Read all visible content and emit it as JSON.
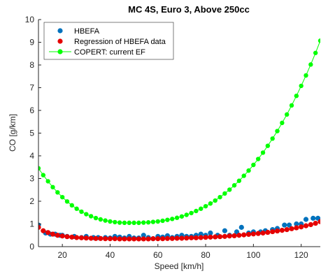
{
  "chart_data": {
    "type": "scatter",
    "title": "MC 4S, Euro 3, Above 250cc",
    "xlabel": "Speed [km/h]",
    "ylabel": "CO [g/km]",
    "xlim": [
      10,
      128
    ],
    "ylim": [
      0,
      10
    ],
    "xticks": [
      20,
      40,
      60,
      80,
      100,
      120
    ],
    "yticks": [
      0,
      1,
      2,
      3,
      4,
      5,
      6,
      7,
      8,
      9,
      10
    ],
    "grid": false,
    "legend_position": "top-left",
    "series": [
      {
        "name": "HBEFA",
        "type": "scatter",
        "color": "#0072BD",
        "x": [
          10,
          13,
          15,
          17,
          19,
          20,
          22,
          25,
          28,
          30,
          33,
          35,
          38,
          40,
          42,
          44,
          46,
          48,
          50,
          52,
          54,
          56,
          58,
          60,
          62,
          64,
          66,
          68,
          70,
          72,
          74,
          76,
          78,
          80,
          82,
          85,
          88,
          90,
          93,
          95,
          98,
          100,
          103,
          105,
          108,
          110,
          113,
          115,
          118,
          120,
          122,
          125,
          127
        ],
        "y": [
          0.95,
          0.6,
          0.55,
          0.55,
          0.5,
          0.5,
          0.45,
          0.45,
          0.4,
          0.45,
          0.4,
          0.4,
          0.4,
          0.38,
          0.45,
          0.42,
          0.38,
          0.45,
          0.38,
          0.38,
          0.5,
          0.4,
          0.35,
          0.45,
          0.42,
          0.48,
          0.4,
          0.45,
          0.5,
          0.45,
          0.45,
          0.5,
          0.55,
          0.5,
          0.6,
          0.5,
          0.7,
          0.5,
          0.65,
          0.85,
          0.6,
          0.65,
          0.65,
          0.7,
          0.75,
          0.8,
          0.95,
          0.95,
          1.0,
          1.0,
          1.2,
          1.25,
          1.25
        ]
      },
      {
        "name": "Regression of HBEFA data",
        "type": "scatter",
        "color": "#E50000",
        "x": [
          10,
          12,
          14,
          16,
          18,
          20,
          22,
          24,
          26,
          28,
          30,
          32,
          34,
          36,
          38,
          40,
          42,
          44,
          46,
          48,
          50,
          52,
          54,
          56,
          58,
          60,
          62,
          64,
          66,
          68,
          70,
          72,
          74,
          76,
          78,
          80,
          82,
          84,
          86,
          88,
          90,
          92,
          94,
          96,
          98,
          100,
          102,
          104,
          106,
          108,
          110,
          112,
          114,
          116,
          118,
          120,
          122,
          124,
          126,
          128
        ],
        "y": [
          0.85,
          0.7,
          0.62,
          0.55,
          0.5,
          0.47,
          0.44,
          0.42,
          0.4,
          0.39,
          0.38,
          0.37,
          0.36,
          0.36,
          0.35,
          0.35,
          0.35,
          0.34,
          0.34,
          0.34,
          0.34,
          0.34,
          0.34,
          0.34,
          0.35,
          0.35,
          0.35,
          0.36,
          0.36,
          0.37,
          0.37,
          0.38,
          0.39,
          0.39,
          0.4,
          0.41,
          0.42,
          0.43,
          0.44,
          0.45,
          0.47,
          0.48,
          0.5,
          0.52,
          0.54,
          0.56,
          0.58,
          0.6,
          0.63,
          0.66,
          0.69,
          0.72,
          0.75,
          0.79,
          0.83,
          0.87,
          0.92,
          0.97,
          1.03,
          1.1
        ]
      },
      {
        "name": "COPERT: current EF",
        "type": "line-marker",
        "color": "#00FF00",
        "x": [
          10,
          12,
          14,
          16,
          18,
          20,
          22,
          24,
          26,
          28,
          30,
          32,
          34,
          36,
          38,
          40,
          42,
          44,
          46,
          48,
          50,
          52,
          54,
          56,
          58,
          60,
          62,
          64,
          66,
          68,
          70,
          72,
          74,
          76,
          78,
          80,
          82,
          84,
          86,
          88,
          90,
          92,
          94,
          96,
          98,
          100,
          102,
          104,
          106,
          108,
          110,
          112,
          114,
          116,
          118,
          120,
          122,
          124,
          126,
          128
        ],
        "y": [
          3.45,
          3.15,
          2.88,
          2.62,
          2.39,
          2.18,
          1.99,
          1.82,
          1.67,
          1.54,
          1.43,
          1.34,
          1.26,
          1.2,
          1.15,
          1.11,
          1.08,
          1.06,
          1.05,
          1.05,
          1.05,
          1.05,
          1.06,
          1.07,
          1.09,
          1.11,
          1.14,
          1.18,
          1.22,
          1.27,
          1.33,
          1.4,
          1.48,
          1.57,
          1.67,
          1.78,
          1.9,
          2.03,
          2.18,
          2.34,
          2.51,
          2.7,
          2.9,
          3.12,
          3.35,
          3.6,
          3.86,
          4.14,
          4.44,
          4.76,
          5.09,
          5.45,
          5.82,
          6.22,
          6.64,
          7.08,
          7.54,
          8.02,
          8.53,
          9.07
        ]
      }
    ]
  }
}
